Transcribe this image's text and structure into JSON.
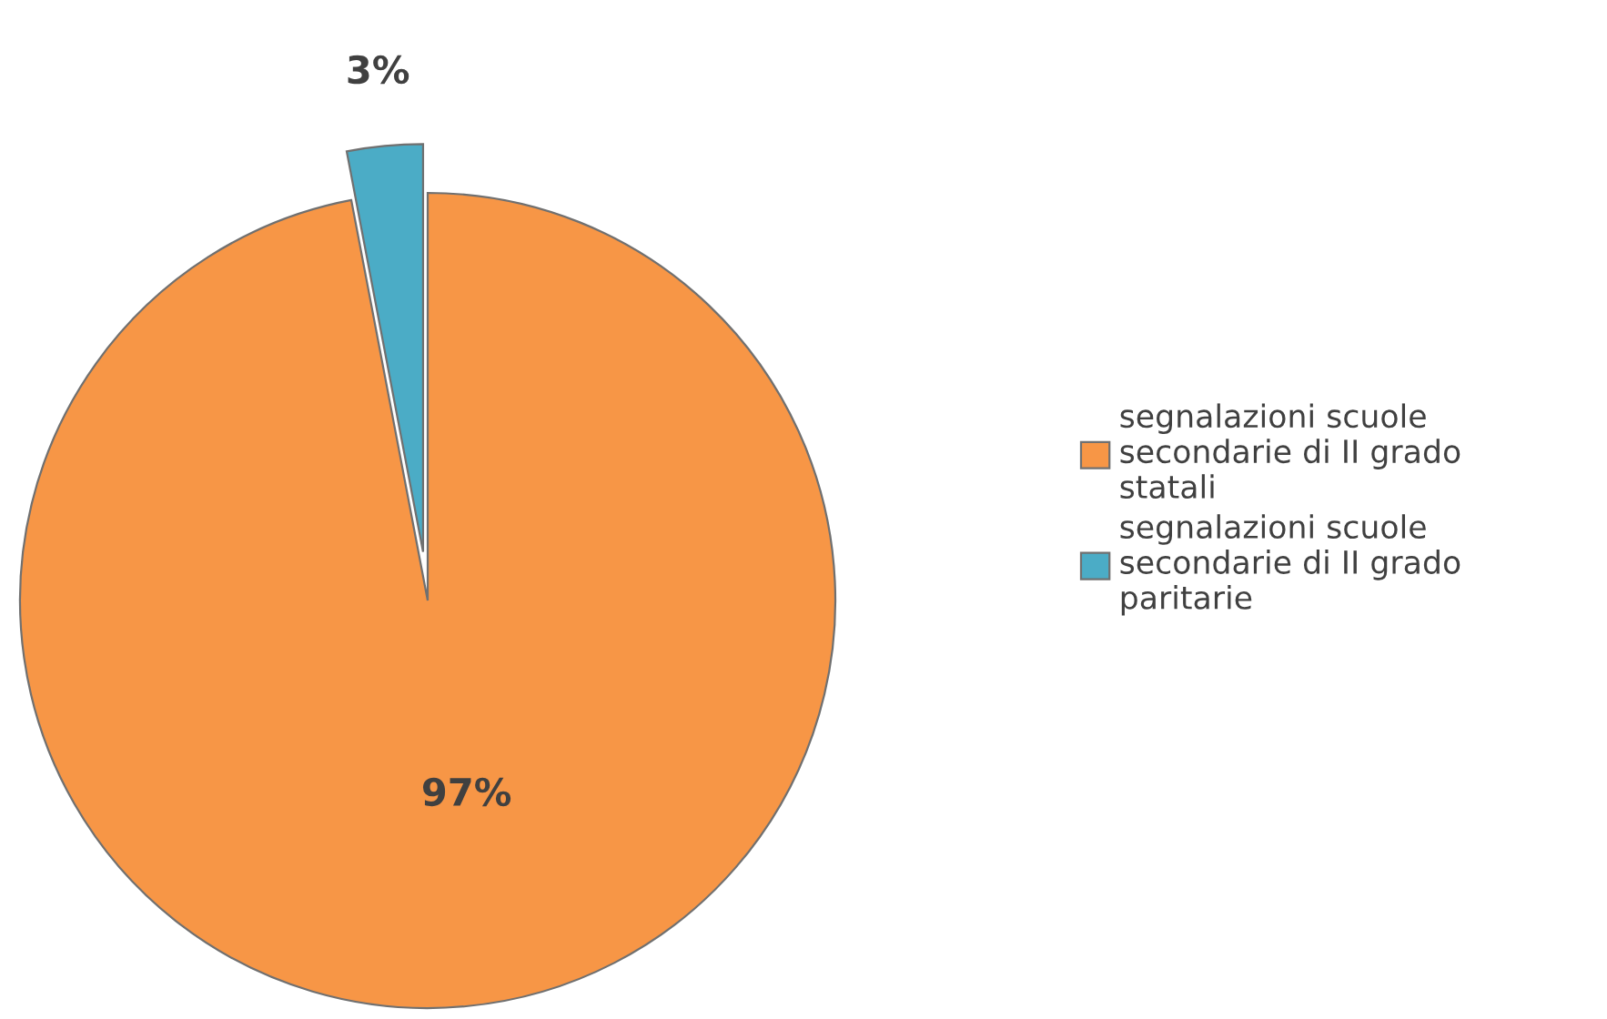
{
  "chart_data": {
    "type": "pie",
    "categories": [
      "segnalazioni scuole secondarie di II grado statali",
      "segnalazioni scuole secondarie di II grado paritarie"
    ],
    "values": [
      97,
      3
    ],
    "colors": [
      "#f79646",
      "#4bacc6"
    ],
    "value_labels": [
      "97%",
      "3%"
    ],
    "legend": "right"
  }
}
